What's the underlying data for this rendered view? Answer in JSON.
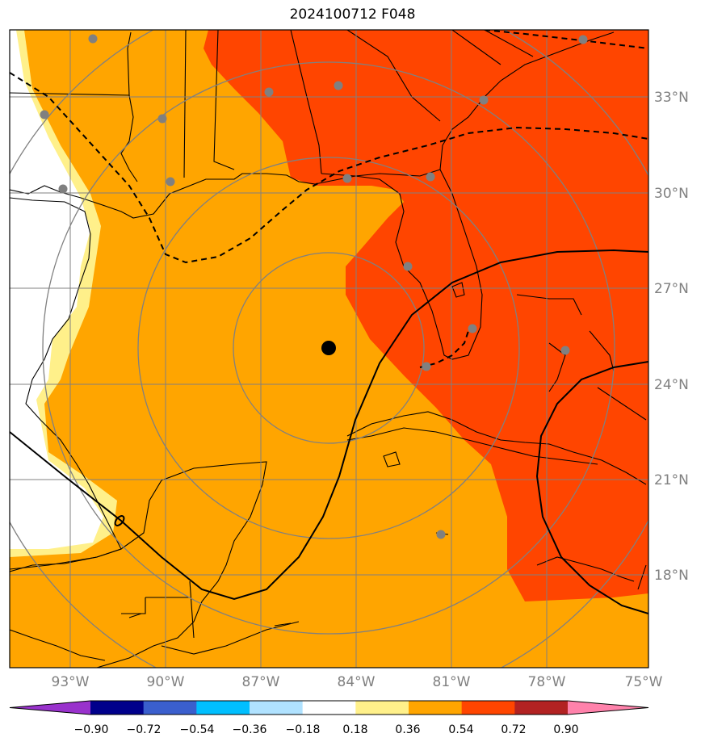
{
  "title": "2024100712 F048",
  "lon_ticks": [
    "93°W",
    "90°W",
    "87°W",
    "84°W",
    "81°W",
    "78°W",
    "75°W"
  ],
  "lat_ticks": [
    "33°N",
    "30°N",
    "27°N",
    "24°N",
    "21°N",
    "18°N"
  ],
  "colorbar": {
    "labels": [
      "−0.90",
      "−0.72",
      "−0.54",
      "−0.36",
      "−0.18",
      "0.18",
      "0.36",
      "0.54",
      "0.72",
      "0.90"
    ],
    "colors": [
      "#9932cc",
      "#00008b",
      "#3a5fcd",
      "#00bfff",
      "#b0e2ff",
      "#ffffff",
      "#fff08a",
      "#ffa500",
      "#ff4500",
      "#b22222",
      "#ff82ab"
    ]
  },
  "colors": {
    "orange": "#ffa500",
    "red_orange": "#ff4500",
    "light_yellow": "#fff08a",
    "grid": "#808080",
    "station": "#808080",
    "center": "#000000"
  }
}
